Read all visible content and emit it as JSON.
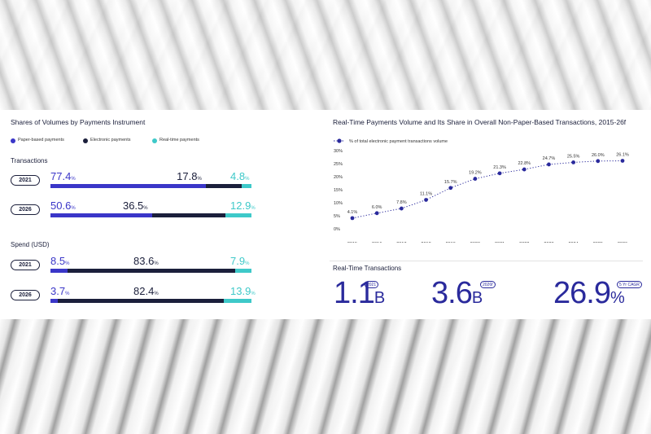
{
  "colors": {
    "paper": "#3a36c8",
    "electronic": "#1b1f3b",
    "realtime": "#3ec9c9",
    "line": "#2a2a9c"
  },
  "left": {
    "title": "Shares of Volumes by Payments Instrument",
    "legend": [
      "Paper-based payments",
      "Electronic payments",
      "Real-time payments"
    ],
    "sections": [
      {
        "label": "Transactions",
        "rows": [
          {
            "year": "2021",
            "paper": 77.4,
            "electronic": 17.8,
            "realtime": 4.8,
            "labels": [
              "77.4",
              "17.8",
              "4.8"
            ]
          },
          {
            "year": "2026",
            "paper": 50.6,
            "electronic": 36.5,
            "realtime": 12.9,
            "labels": [
              "50.6",
              "36.5",
              "12.9"
            ]
          }
        ]
      },
      {
        "label": "Spend (USD)",
        "rows": [
          {
            "year": "2021",
            "paper": 8.5,
            "electronic": 83.6,
            "realtime": 7.9,
            "labels": [
              "8.5",
              "83.6",
              "7.9"
            ]
          },
          {
            "year": "2026",
            "paper": 3.7,
            "electronic": 82.4,
            "realtime": 13.9,
            "labels": [
              "3.7",
              "82.4",
              "13.9"
            ]
          }
        ]
      }
    ],
    "pct_sign": "%"
  },
  "chart_data": {
    "type": "line",
    "title": "Real-Time Payments Volume and Its Share in Overall Non-Paper-Based Transactions, 2015-26f",
    "legend": "% of total electronic payment transactions volume",
    "x": [
      "2015",
      "2016",
      "2017",
      "2018",
      "2019",
      "2020",
      "2021",
      "2022",
      "2023",
      "2024",
      "2025",
      "2026"
    ],
    "values": [
      4.1,
      6.0,
      7.8,
      11.1,
      15.7,
      19.2,
      21.3,
      22.8,
      24.7,
      25.5,
      26.0,
      26.1
    ],
    "value_labels": [
      "4.1%",
      "6.0%",
      "7.8%",
      "11.1%",
      "15.7%",
      "19.2%",
      "21.3%",
      "22.8%",
      "24.7%",
      "25.5%",
      "26.0%",
      "26.1%"
    ],
    "ylim": [
      0,
      30
    ],
    "yticks": [
      "0%",
      "5%",
      "10%",
      "15%",
      "20%",
      "25%",
      "30%"
    ],
    "grid": false
  },
  "rt": {
    "title": "Real-Time Transactions",
    "stats": [
      {
        "value": "1.1",
        "unit": "B",
        "badge": "2021"
      },
      {
        "value": "3.6",
        "unit": "B",
        "badge": "2026f"
      },
      {
        "value": "26.9",
        "unit": "%",
        "badge": "5 Yr CAGR"
      }
    ]
  }
}
